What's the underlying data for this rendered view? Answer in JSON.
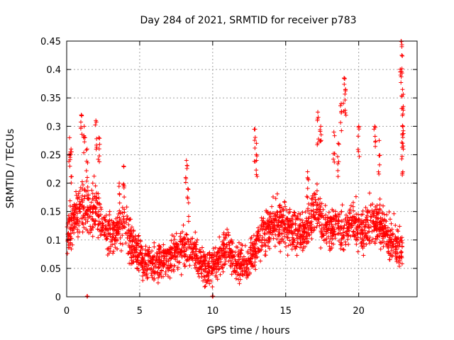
{
  "chart_data": {
    "type": "scatter",
    "title": "Day 284 of 2021, SRMTID for receiver p783",
    "xlabel": "GPS time / hours",
    "ylabel": "SRMTID / TECUs",
    "xlim": [
      0,
      24
    ],
    "ylim": [
      0,
      0.45
    ],
    "xticks": [
      0,
      5,
      10,
      15,
      20
    ],
    "xtick_labels": [
      "0",
      "5",
      "10",
      "15",
      "20"
    ],
    "yticks": [
      0,
      0.05,
      0.1,
      0.15,
      0.2,
      0.25,
      0.3,
      0.35,
      0.4,
      0.45
    ],
    "ytick_labels": [
      "0",
      "0.05",
      "0.1",
      "0.15",
      "0.2",
      "0.25",
      "0.3",
      "0.35",
      "0.4",
      "0.45"
    ],
    "grid": true,
    "marker": "plus",
    "color": "#ff0000",
    "series": [
      {
        "name": "SRMTID p783",
        "trend": [
          [
            0.0,
            0.11
          ],
          [
            0.5,
            0.14
          ],
          [
            1.0,
            0.16
          ],
          [
            1.5,
            0.15
          ],
          [
            2.0,
            0.16
          ],
          [
            2.5,
            0.12
          ],
          [
            3.0,
            0.11
          ],
          [
            3.5,
            0.12
          ],
          [
            4.0,
            0.13
          ],
          [
            4.5,
            0.09
          ],
          [
            5.0,
            0.07
          ],
          [
            5.5,
            0.065
          ],
          [
            6.0,
            0.06
          ],
          [
            6.5,
            0.065
          ],
          [
            7.0,
            0.07
          ],
          [
            7.5,
            0.08
          ],
          [
            8.0,
            0.085
          ],
          [
            8.5,
            0.08
          ],
          [
            9.0,
            0.065
          ],
          [
            9.5,
            0.05
          ],
          [
            10.0,
            0.055
          ],
          [
            10.5,
            0.07
          ],
          [
            11.0,
            0.09
          ],
          [
            11.5,
            0.06
          ],
          [
            12.0,
            0.055
          ],
          [
            12.5,
            0.06
          ],
          [
            13.0,
            0.09
          ],
          [
            13.5,
            0.11
          ],
          [
            14.0,
            0.13
          ],
          [
            14.5,
            0.13
          ],
          [
            15.0,
            0.13
          ],
          [
            15.5,
            0.12
          ],
          [
            16.0,
            0.11
          ],
          [
            16.5,
            0.12
          ],
          [
            17.0,
            0.16
          ],
          [
            17.5,
            0.13
          ],
          [
            18.0,
            0.12
          ],
          [
            18.5,
            0.13
          ],
          [
            19.0,
            0.11
          ],
          [
            19.5,
            0.13
          ],
          [
            20.0,
            0.12
          ],
          [
            20.5,
            0.12
          ],
          [
            21.0,
            0.13
          ],
          [
            21.5,
            0.13
          ],
          [
            22.0,
            0.1
          ],
          [
            22.5,
            0.095
          ],
          [
            23.0,
            0.08
          ]
        ],
        "spread": 0.035,
        "n_points": 2300,
        "peaks": [
          [
            0.2,
            0.28
          ],
          [
            0.3,
            0.26
          ],
          [
            1.0,
            0.32
          ],
          [
            1.2,
            0.3
          ],
          [
            1.4,
            0.26
          ],
          [
            2.0,
            0.31
          ],
          [
            2.2,
            0.28
          ],
          [
            3.6,
            0.2
          ],
          [
            3.9,
            0.23
          ],
          [
            8.2,
            0.24
          ],
          [
            8.3,
            0.19
          ],
          [
            12.9,
            0.295
          ],
          [
            13.0,
            0.27
          ],
          [
            16.5,
            0.22
          ],
          [
            17.2,
            0.325
          ],
          [
            17.4,
            0.3
          ],
          [
            18.3,
            0.29
          ],
          [
            18.6,
            0.27
          ],
          [
            18.8,
            0.34
          ],
          [
            19.0,
            0.385
          ],
          [
            19.1,
            0.365
          ],
          [
            20.0,
            0.3
          ],
          [
            21.1,
            0.3
          ],
          [
            21.4,
            0.275
          ],
          [
            22.9,
            0.45
          ],
          [
            22.95,
            0.425
          ],
          [
            23.0,
            0.365
          ],
          [
            23.05,
            0.335
          ],
          [
            23.0,
            0.3
          ],
          [
            23.0,
            0.27
          ]
        ],
        "zero_points": [
          [
            1.4,
            0.0
          ],
          [
            10.0,
            0.0
          ]
        ]
      }
    ]
  }
}
